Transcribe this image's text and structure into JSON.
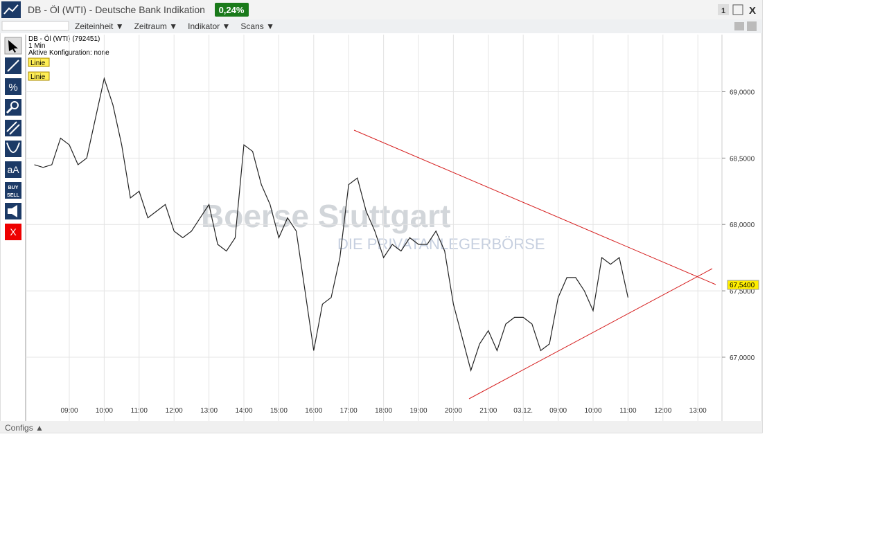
{
  "window": {
    "title": "DB - Öl (WTI) - Deutsche Bank Indikation",
    "badge": "0,24%",
    "button": "1",
    "close": "X"
  },
  "menu": [
    "Zeiteinheit ▼",
    "Zeitraum ▼",
    "Indikator ▼",
    "Scans ▼"
  ],
  "chart_info": {
    "name": "DB - Öl (WTI) (792451)",
    "interval": "1 Min",
    "config": "Aktive Konfiguration: none",
    "tags": [
      "Linie",
      "Linie"
    ]
  },
  "tools": {
    "text": "aA",
    "buy": "BUY",
    "sell": "SELL",
    "delete": "X"
  },
  "watermark": {
    "brand": "Boerse Stuttgart",
    "slogan": "DIE PRIVATANLEGERBÖRSE"
  },
  "footer": "Configs ▲",
  "chart_data": {
    "type": "line",
    "categories": [
      null,
      null,
      null,
      null,
      "09:00",
      null,
      null,
      null,
      "10:00",
      null,
      null,
      null,
      "11:00",
      null,
      null,
      null,
      "12:00",
      null,
      null,
      null,
      "13:00",
      null,
      null,
      null,
      "14:00",
      null,
      null,
      null,
      "15:00",
      null,
      null,
      null,
      "16:00",
      null,
      null,
      null,
      "17:00",
      null,
      null,
      null,
      "18:00",
      null,
      null,
      null,
      "19:00",
      null,
      null,
      null,
      "20:00",
      null,
      null,
      null,
      "21:00",
      null,
      null,
      null,
      "03.12.",
      null,
      null,
      null,
      "09:00",
      null,
      null,
      null,
      "10:00",
      null,
      null,
      null,
      "11:00",
      null,
      null,
      null,
      "12:00",
      null,
      null,
      null,
      "13:00",
      null,
      null
    ],
    "series": [
      {
        "name": "DB - Öl (WTI)",
        "color": "#222222",
        "values": [
          68.45,
          68.43,
          68.45,
          68.65,
          68.6,
          68.45,
          68.5,
          68.8,
          69.1,
          68.9,
          68.6,
          68.2,
          68.25,
          68.05,
          68.1,
          68.15,
          67.95,
          67.9,
          67.95,
          68.05,
          68.15,
          67.85,
          67.8,
          67.9,
          68.6,
          68.55,
          68.3,
          68.15,
          67.9,
          68.05,
          67.95,
          67.5,
          67.05,
          67.4,
          67.45,
          67.75,
          68.3,
          68.35,
          68.1,
          67.95,
          67.75,
          67.85,
          67.8,
          67.9,
          67.85,
          67.85,
          67.95,
          67.8,
          67.4,
          67.15,
          66.9,
          67.1,
          67.2,
          67.05,
          67.25,
          67.3,
          67.3,
          67.25,
          67.05,
          67.1,
          67.45,
          67.6,
          67.6,
          67.5,
          67.35,
          67.75,
          67.7,
          67.75,
          67.45,
          null,
          null,
          null,
          null,
          null,
          null,
          null,
          null,
          null,
          null
        ]
      }
    ],
    "last_price": "67,5400",
    "ylim": [
      66.52,
      69.43
    ],
    "yticks": [
      {
        "value": 67,
        "label": "67,0000"
      },
      {
        "value": 67.5,
        "label": "67,5000"
      },
      {
        "value": 68,
        "label": "68,0000"
      },
      {
        "value": 68.5,
        "label": "68,5000"
      },
      {
        "value": 69,
        "label": "69,0000"
      }
    ],
    "grid": true
  }
}
